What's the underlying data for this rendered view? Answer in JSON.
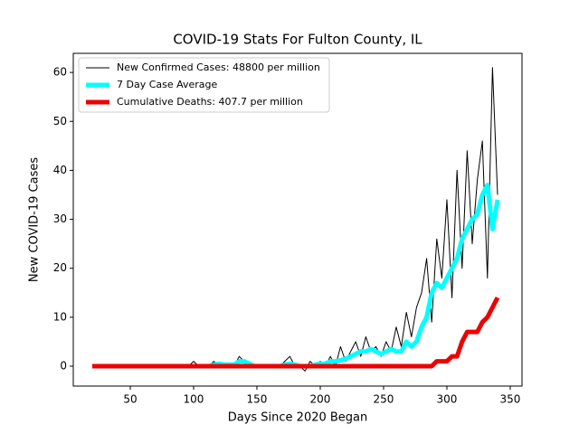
{
  "chart_data": {
    "type": "line",
    "title": "COVID-19 Stats For Fulton County, IL",
    "x_label": "Days Since 2020 Began",
    "y_label": "New COVID-19 Cases",
    "xlim": [
      5,
      359.3
    ],
    "ylim": [
      -4.06,
      63.9
    ],
    "xticks": [
      50,
      100,
      150,
      200,
      250,
      300,
      350
    ],
    "yticks": [
      0,
      10,
      20,
      30,
      40,
      50,
      60
    ],
    "legend": "upper left",
    "x": [
      20,
      24,
      28,
      32,
      36,
      40,
      44,
      48,
      52,
      56,
      60,
      64,
      68,
      72,
      76,
      80,
      84,
      88,
      92,
      96,
      100,
      104,
      108,
      112,
      116,
      120,
      124,
      128,
      132,
      136,
      140,
      144,
      148,
      152,
      156,
      160,
      164,
      168,
      172,
      176,
      180,
      184,
      188,
      192,
      196,
      200,
      204,
      208,
      212,
      216,
      220,
      224,
      228,
      232,
      236,
      240,
      244,
      248,
      252,
      256,
      260,
      264,
      268,
      272,
      276,
      280,
      284,
      288,
      292,
      296,
      300,
      304,
      308,
      312,
      316,
      320,
      324,
      328,
      332,
      336,
      340
    ],
    "series": [
      {
        "name": "New Confirmed Cases: 48800 per million",
        "color": "#000000",
        "width": 1,
        "values": [
          0,
          0,
          0,
          0,
          0,
          0,
          0,
          0,
          0,
          0,
          0,
          0,
          0,
          0,
          0,
          0,
          0,
          0,
          0,
          0,
          1,
          0,
          0,
          0,
          1,
          0,
          0,
          0,
          0,
          2,
          1,
          0,
          0,
          0,
          0,
          0,
          0,
          0,
          1,
          2,
          0,
          0,
          -1,
          1,
          0,
          1,
          0,
          2,
          0,
          4,
          1,
          3,
          5,
          2,
          6,
          3,
          4,
          2,
          5,
          3,
          8,
          4,
          11,
          6,
          12,
          15,
          22,
          9,
          26,
          18,
          34,
          14,
          40,
          20,
          44,
          25,
          38,
          46,
          18,
          61,
          35
        ]
      },
      {
        "name": "7 Day Case Average",
        "color": "#00ffff",
        "width": 5,
        "values": [
          0,
          0,
          0,
          0,
          0,
          0,
          0,
          0,
          0,
          0,
          0,
          0,
          0,
          0,
          0,
          0,
          0,
          0,
          0,
          0,
          0,
          0,
          0,
          0,
          0.3,
          0.5,
          0.3,
          0.3,
          0.3,
          1,
          1,
          0.5,
          0,
          0,
          0,
          0,
          0,
          0,
          0.3,
          0.5,
          0.3,
          0,
          0,
          0,
          0.3,
          0.5,
          0.5,
          1,
          1,
          1.2,
          1.5,
          2,
          2.5,
          3,
          3,
          3.5,
          3,
          2.5,
          3,
          3.5,
          3,
          3,
          5,
          4,
          5,
          8,
          10,
          15,
          17,
          16,
          18,
          20,
          22,
          26,
          28,
          30,
          31,
          35,
          37,
          28,
          34
        ]
      },
      {
        "name": "Cumulative Deaths: 407.7 per million",
        "color": "#ee0000",
        "width": 5,
        "values": [
          0,
          0,
          0,
          0,
          0,
          0,
          0,
          0,
          0,
          0,
          0,
          0,
          0,
          0,
          0,
          0,
          0,
          0,
          0,
          0,
          0,
          0,
          0,
          0,
          0,
          0,
          0,
          0,
          0,
          0,
          0,
          0,
          0,
          0,
          0,
          0,
          0,
          0,
          0,
          0,
          0,
          0,
          0,
          0,
          0,
          0,
          0,
          0,
          0,
          0,
          0,
          0,
          0,
          0,
          0,
          0,
          0,
          0,
          0,
          0,
          0,
          0,
          0,
          0,
          0,
          0,
          0,
          0,
          1,
          1,
          1,
          2,
          2,
          5,
          7,
          7,
          7,
          9,
          10,
          12,
          14
        ]
      }
    ]
  }
}
